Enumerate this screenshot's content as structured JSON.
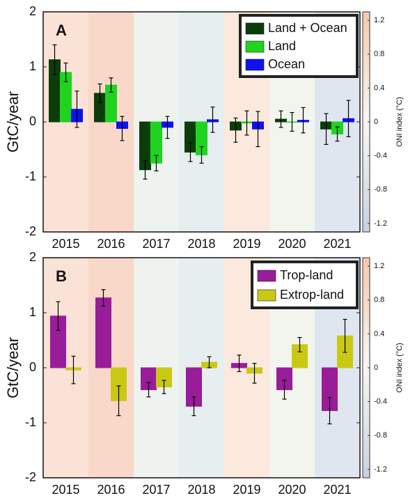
{
  "chart_data": [
    {
      "type": "bar",
      "panel_label": "A",
      "ylabel": "GtC/year",
      "categories": [
        "2015",
        "2016",
        "2017",
        "2018",
        "2019",
        "2020",
        "2021"
      ],
      "series": [
        {
          "name": "Land + Ocean",
          "color": "#0b3d0b",
          "values": [
            1.13,
            0.52,
            -0.87,
            -0.55,
            -0.15,
            0.05,
            -0.13
          ],
          "errors": [
            0.27,
            0.17,
            0.17,
            0.17,
            0.22,
            0.15,
            0.28
          ]
        },
        {
          "name": "Land",
          "color": "#1fd41f",
          "values": [
            0.9,
            0.67,
            -0.75,
            -0.6,
            -0.02,
            0.0,
            -0.22
          ],
          "errors": [
            0.17,
            0.13,
            0.14,
            0.15,
            0.22,
            0.17,
            0.13
          ]
        },
        {
          "name": "Ocean",
          "color": "#1010f0",
          "values": [
            0.23,
            -0.12,
            -0.1,
            0.04,
            -0.13,
            0.03,
            0.06
          ],
          "errors": [
            0.33,
            0.22,
            0.2,
            0.23,
            0.32,
            0.23,
            0.33
          ]
        }
      ],
      "ylim": [
        -2,
        2
      ],
      "yticks": [
        -2,
        -1,
        0,
        1,
        2
      ],
      "band_colors": [
        "#fbe2d6",
        "#f9d8c9",
        "#eef3ef",
        "#e6eef0",
        "#fbe9dd",
        "#f2f4ee",
        "#dfe6ef"
      ],
      "colorbar": {
        "label": "ONI index (°C)",
        "lim": [
          -1.3,
          1.3
        ],
        "ticks": [
          -1.2,
          -0.8,
          -0.4,
          0,
          0.4,
          0.8,
          1.2
        ]
      }
    },
    {
      "type": "bar",
      "panel_label": "B",
      "ylabel": "GtC/year",
      "categories": [
        "2015",
        "2016",
        "2017",
        "2018",
        "2019",
        "2020",
        "2021"
      ],
      "series": [
        {
          "name": "Trop-land",
          "color": "#991c99",
          "values": [
            0.94,
            1.27,
            -0.4,
            -0.7,
            0.08,
            -0.4,
            -0.78
          ],
          "errors": [
            0.26,
            0.15,
            0.13,
            0.17,
            0.15,
            0.17,
            0.24
          ]
        },
        {
          "name": "Extrop-land",
          "color": "#c9c914",
          "values": [
            -0.04,
            -0.6,
            -0.35,
            0.1,
            -0.1,
            0.42,
            0.58
          ],
          "errors": [
            0.25,
            0.27,
            0.12,
            0.1,
            0.18,
            0.13,
            0.3
          ]
        }
      ],
      "ylim": [
        -2,
        2
      ],
      "yticks": [
        -2,
        -1,
        0,
        1,
        2
      ],
      "band_colors": [
        "#fbe2d6",
        "#f9d8c9",
        "#eef3ef",
        "#e6eef0",
        "#fbe9dd",
        "#f2f4ee",
        "#dfe6ef"
      ],
      "colorbar": {
        "label": "ONI index (°C)",
        "lim": [
          -1.3,
          1.3
        ],
        "ticks": [
          -1.2,
          -0.8,
          -0.4,
          0,
          0.4,
          0.8,
          1.2
        ]
      }
    }
  ]
}
